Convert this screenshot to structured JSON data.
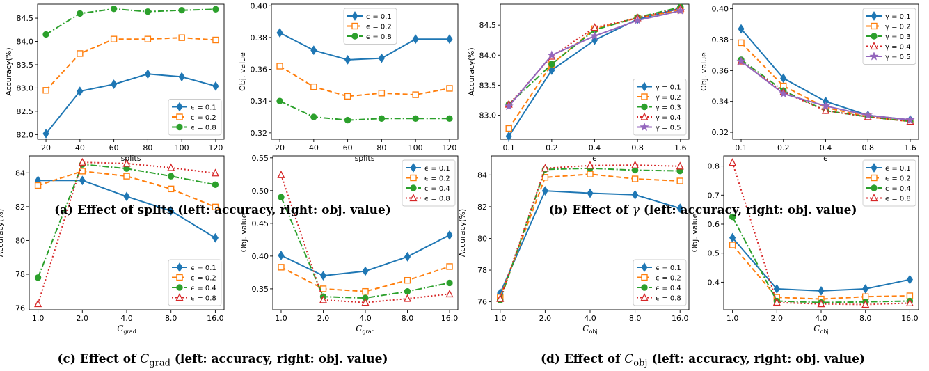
{
  "colors": {
    "blue": "#1f77b4",
    "orange": "#ff7f0e",
    "green": "#2ca02c",
    "red": "#d62728",
    "purple": "#9467bd"
  },
  "captions": [
    {
      "tag": "(a)",
      "prefix": "Effect of splits",
      "var": "",
      "sub": "",
      "suffix": " (left: accuracy, right: obj. value)"
    },
    {
      "tag": "(b)",
      "prefix": "Effect of ",
      "var": "γ",
      "sub": "",
      "suffix": " (left: accuracy, right: obj. value)"
    },
    {
      "tag": "(c)",
      "prefix": "Effect of ",
      "var": "C",
      "sub": "grad",
      "suffix": " (left: accuracy, right: obj. value)"
    },
    {
      "tag": "(d)",
      "prefix": "Effect of ",
      "var": "C",
      "sub": "obj",
      "suffix": " (left: accuracy, right: obj. value)"
    }
  ],
  "chart_data": [
    {
      "type": "line",
      "xlabel": "splits",
      "xlabel_sub": "",
      "ylabel": "Accuracy(%)",
      "legend": "bottom-right",
      "x": [
        20,
        40,
        60,
        80,
        100,
        120
      ],
      "xticks": [
        "20",
        "40",
        "60",
        "80",
        "100",
        "120"
      ],
      "ylim": [
        81.9,
        84.8
      ],
      "yticks": [
        "82.0",
        "82.5",
        "83.0",
        "83.5",
        "84.0",
        "84.5"
      ],
      "ytickvals": [
        82.0,
        82.5,
        83.0,
        83.5,
        84.0,
        84.5
      ],
      "series": [
        {
          "name": "ϵ = 0.1",
          "values": [
            82.02,
            82.93,
            83.08,
            83.3,
            83.24,
            83.04
          ]
        },
        {
          "name": "ϵ = 0.2",
          "values": [
            82.95,
            83.74,
            84.05,
            84.05,
            84.08,
            84.03
          ]
        },
        {
          "name": "ϵ = 0.8",
          "values": [
            84.15,
            84.6,
            84.7,
            84.64,
            84.67,
            84.69
          ]
        }
      ]
    },
    {
      "type": "line",
      "xlabel": "splits",
      "xlabel_sub": "",
      "ylabel": "Obj. value",
      "legend": "top-center",
      "x": [
        20,
        40,
        60,
        80,
        100,
        120
      ],
      "xticks": [
        "20",
        "40",
        "60",
        "80",
        "100",
        "120"
      ],
      "ylim": [
        0.316,
        0.401
      ],
      "yticks": [
        "0.32",
        "0.34",
        "0.36",
        "0.38",
        "0.40"
      ],
      "ytickvals": [
        0.32,
        0.34,
        0.36,
        0.38,
        0.4
      ],
      "series": [
        {
          "name": "ϵ = 0.1",
          "values": [
            0.383,
            0.372,
            0.366,
            0.367,
            0.379,
            0.379
          ]
        },
        {
          "name": "ϵ = 0.2",
          "values": [
            0.362,
            0.349,
            0.343,
            0.345,
            0.344,
            0.348
          ]
        },
        {
          "name": "ϵ = 0.8",
          "values": [
            0.34,
            0.33,
            0.328,
            0.329,
            0.329,
            0.329
          ]
        }
      ]
    },
    {
      "type": "line",
      "xlabel": "ϵ",
      "xlabel_sub": "",
      "ylabel": "Accuracy(%)",
      "legend": "bottom-right",
      "x": [
        0.1,
        0.2,
        0.4,
        0.8,
        1.6
      ],
      "xticks": [
        "0.1",
        "0.2",
        "0.4",
        "0.8",
        "1.6"
      ],
      "ylim": [
        82.6,
        84.85
      ],
      "yticks": [
        "83.0",
        "83.5",
        "84.0",
        "84.5"
      ],
      "ytickvals": [
        83.0,
        83.5,
        84.0,
        84.5
      ],
      "series": [
        {
          "name": "γ = 0.1",
          "values": [
            82.65,
            83.75,
            84.25,
            84.6,
            84.78
          ]
        },
        {
          "name": "γ = 0.2",
          "values": [
            82.78,
            83.85,
            84.44,
            84.62,
            84.75
          ]
        },
        {
          "name": "γ = 0.3",
          "values": [
            83.18,
            83.85,
            84.42,
            84.63,
            84.8
          ]
        },
        {
          "name": "γ = 0.4",
          "values": [
            83.18,
            83.98,
            84.46,
            84.62,
            84.78
          ]
        },
        {
          "name": "γ = 0.5",
          "values": [
            83.15,
            84.0,
            84.32,
            84.58,
            84.74
          ]
        }
      ]
    },
    {
      "type": "line",
      "xlabel": "ϵ",
      "xlabel_sub": "",
      "ylabel": "Obj. value",
      "legend": "top-right",
      "x": [
        0.1,
        0.2,
        0.4,
        0.8,
        1.6
      ],
      "xticks": [
        "0.1",
        "0.2",
        "0.4",
        "0.8",
        "1.6"
      ],
      "ylim": [
        0.3155,
        0.403
      ],
      "yticks": [
        "0.32",
        "0.34",
        "0.36",
        "0.38",
        "0.40"
      ],
      "ytickvals": [
        0.32,
        0.34,
        0.36,
        0.38,
        0.4
      ],
      "series": [
        {
          "name": "γ = 0.1",
          "values": [
            0.387,
            0.355,
            0.34,
            0.331,
            0.328
          ]
        },
        {
          "name": "γ = 0.2",
          "values": [
            0.378,
            0.35,
            0.336,
            0.33,
            0.327
          ]
        },
        {
          "name": "γ = 0.3",
          "values": [
            0.367,
            0.347,
            0.334,
            0.33,
            0.327
          ]
        },
        {
          "name": "γ = 0.4",
          "values": [
            0.366,
            0.346,
            0.334,
            0.33,
            0.327
          ]
        },
        {
          "name": "γ = 0.5",
          "values": [
            0.366,
            0.345,
            0.337,
            0.331,
            0.328
          ]
        }
      ]
    },
    {
      "type": "line",
      "xlabel": "C",
      "xlabel_sub": "grad",
      "ylabel": "Accuracy(%)",
      "legend": "bottom-right",
      "x": [
        1.0,
        2.0,
        4.0,
        8.0,
        16.0
      ],
      "xticks": [
        "1.0",
        "2.0",
        "4.0",
        "8.0",
        "16.0"
      ],
      "ylim": [
        75.9,
        85.0
      ],
      "yticks": [
        "76",
        "78",
        "80",
        "82",
        "84"
      ],
      "ytickvals": [
        76,
        78,
        80,
        82,
        84
      ],
      "series": [
        {
          "name": "ϵ = 0.1",
          "values": [
            83.55,
            83.55,
            82.6,
            81.75,
            80.15
          ]
        },
        {
          "name": "ϵ = 0.2",
          "values": [
            83.25,
            84.1,
            83.8,
            83.05,
            81.98
          ]
        },
        {
          "name": "ϵ = 0.4",
          "values": [
            77.8,
            84.5,
            84.25,
            83.8,
            83.3
          ]
        },
        {
          "name": "ϵ = 0.8",
          "values": [
            76.25,
            84.62,
            84.55,
            84.3,
            83.98
          ]
        }
      ]
    },
    {
      "type": "line",
      "xlabel": "C",
      "xlabel_sub": "grad",
      "ylabel": "Obj. value",
      "legend": "top-right",
      "x": [
        1.0,
        2.0,
        4.0,
        8.0,
        16.0
      ],
      "xticks": [
        "1.0",
        "2.0",
        "4.0",
        "8.0",
        "16.0"
      ],
      "ylim": [
        0.318,
        0.553
      ],
      "yticks": [
        "0.35",
        "0.40",
        "0.45",
        "0.50",
        "0.55"
      ],
      "ytickvals": [
        0.35,
        0.4,
        0.45,
        0.5,
        0.55
      ],
      "series": [
        {
          "name": "ϵ = 0.1",
          "values": [
            0.401,
            0.37,
            0.377,
            0.399,
            0.432
          ]
        },
        {
          "name": "ϵ = 0.2",
          "values": [
            0.383,
            0.35,
            0.346,
            0.363,
            0.384
          ]
        },
        {
          "name": "ϵ = 0.4",
          "values": [
            0.49,
            0.338,
            0.336,
            0.346,
            0.359
          ]
        },
        {
          "name": "ϵ = 0.8",
          "values": [
            0.524,
            0.333,
            0.329,
            0.335,
            0.342
          ]
        }
      ]
    },
    {
      "type": "line",
      "xlabel": "C",
      "xlabel_sub": "obj",
      "ylabel": "Accuracy(%)",
      "legend": "bottom-right",
      "x": [
        1.0,
        2.0,
        4.0,
        8.0,
        16.0
      ],
      "xticks": [
        "1.0",
        "2.0",
        "4.0",
        "8.0",
        "16.0"
      ],
      "ylim": [
        75.5,
        85.2
      ],
      "yticks": [
        "76",
        "78",
        "80",
        "82",
        "84"
      ],
      "ytickvals": [
        76,
        78,
        80,
        82,
        84
      ],
      "series": [
        {
          "name": "ϵ = 0.1",
          "values": [
            76.55,
            83.0,
            82.85,
            82.75,
            81.9
          ]
        },
        {
          "name": "ϵ = 0.2",
          "values": [
            76.3,
            83.85,
            84.05,
            83.75,
            83.62
          ]
        },
        {
          "name": "ϵ = 0.4",
          "values": [
            76.1,
            84.35,
            84.42,
            84.3,
            84.25
          ]
        },
        {
          "name": "ϵ = 0.8",
          "values": [
            76.2,
            84.42,
            84.6,
            84.62,
            84.55
          ]
        }
      ]
    },
    {
      "type": "line",
      "xlabel": "C",
      "xlabel_sub": "obj",
      "ylabel": "Obj. value",
      "legend": "top-right",
      "x": [
        1.0,
        2.0,
        4.0,
        8.0,
        16.0
      ],
      "xticks": [
        "1.0",
        "2.0",
        "4.0",
        "8.0",
        "16.0"
      ],
      "ylim": [
        0.305,
        0.835
      ],
      "yticks": [
        "0.4",
        "0.5",
        "0.6",
        "0.7",
        "0.8"
      ],
      "ytickvals": [
        0.4,
        0.5,
        0.6,
        0.7,
        0.8
      ],
      "series": [
        {
          "name": "ϵ = 0.1",
          "values": [
            0.553,
            0.377,
            0.37,
            0.377,
            0.409
          ]
        },
        {
          "name": "ϵ = 0.2",
          "values": [
            0.528,
            0.348,
            0.342,
            0.35,
            0.353
          ]
        },
        {
          "name": "ϵ = 0.4",
          "values": [
            0.625,
            0.335,
            0.33,
            0.332,
            0.335
          ]
        },
        {
          "name": "ϵ = 0.8",
          "values": [
            0.812,
            0.33,
            0.325,
            0.323,
            0.328
          ]
        }
      ]
    }
  ]
}
